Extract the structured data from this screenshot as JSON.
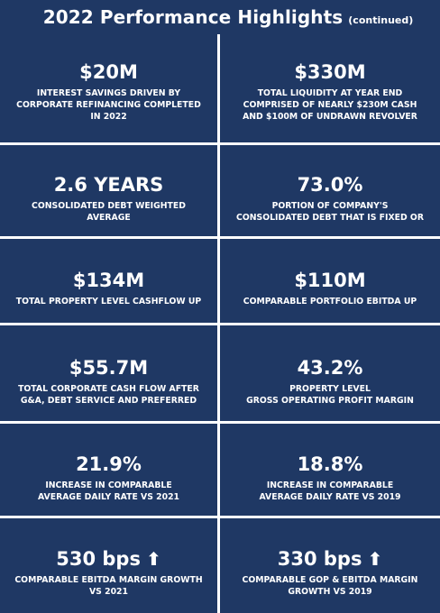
{
  "header": {
    "title": "2022 Performance Highlights",
    "subtitle": "(continued)"
  },
  "tiles": [
    {
      "value": "$20M",
      "desc_lines": [
        "INTEREST SAVINGS DRIVEN BY",
        "CORPORATE REFINANCING COMPLETED",
        "IN 2022"
      ]
    },
    {
      "value": "$330M",
      "desc_lines": [
        "TOTAL LIQUIDITY AT YEAR END",
        "COMPRISED OF NEARLY $230M CASH",
        "AND $100M OF UNDRAWN REVOLVER"
      ]
    },
    {
      "value": "2.6 YEARS",
      "desc_lines": [
        "CONSOLIDATED DEBT WEIGHTED",
        "AVERAGE"
      ]
    },
    {
      "value": "73.0%",
      "desc_lines": [
        "PORTION OF COMPANY'S",
        "CONSOLIDATED DEBT THAT IS FIXED OR"
      ]
    },
    {
      "value": "$134M",
      "desc_lines": [
        "TOTAL PROPERTY LEVEL CASHFLOW UP"
      ]
    },
    {
      "value": "$110M",
      "desc_lines": [
        "COMPARABLE PORTFOLIO EBITDA UP"
      ]
    },
    {
      "value": "$55.7M",
      "desc_lines": [
        "TOTAL CORPORATE CASH FLOW AFTER",
        "G&A, DEBT SERVICE AND PREFERRED"
      ]
    },
    {
      "value": "43.2%",
      "desc_lines": [
        "PROPERTY LEVEL",
        "GROSS OPERATING PROFIT MARGIN"
      ]
    },
    {
      "value": "21.9%",
      "desc_lines": [
        "INCREASE IN COMPARABLE",
        "AVERAGE DAILY RATE VS 2021"
      ]
    },
    {
      "value": "18.8%",
      "desc_lines": [
        "INCREASE IN COMPARABLE",
        "AVERAGE DAILY RATE VS 2019"
      ]
    },
    {
      "value": "530 bps",
      "icon": "arrow-up-icon",
      "desc_lines": [
        "COMPARABLE EBITDA MARGIN GROWTH",
        "VS 2021"
      ]
    },
    {
      "value": "330 bps",
      "icon": "arrow-up-icon",
      "desc_lines": [
        "COMPARABLE GOP & EBITDA MARGIN",
        "GROWTH VS 2019"
      ]
    }
  ],
  "colors": {
    "tile_background": "#1f3864",
    "text": "#ffffff",
    "divider": "#ffffff"
  }
}
